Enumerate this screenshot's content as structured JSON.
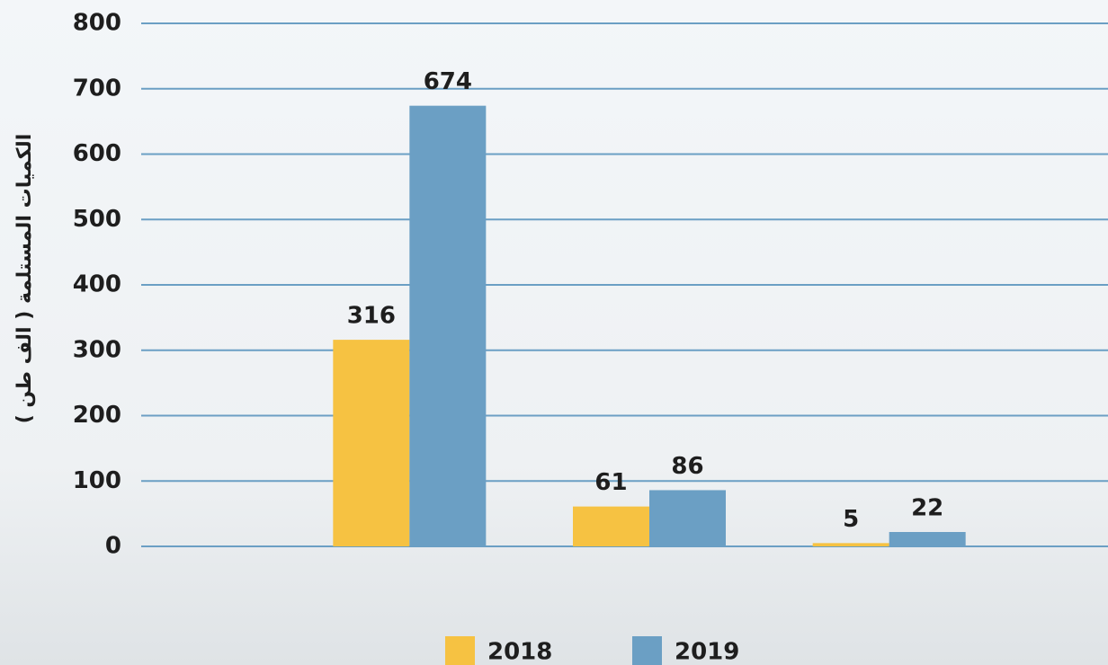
{
  "chart_data": {
    "type": "bar",
    "y_label": "الكميات المستلمة ( الف طن )",
    "categories": [
      null,
      null,
      null
    ],
    "series": [
      {
        "name": "2018",
        "color": "#f6c242",
        "values": [
          316,
          61,
          5
        ]
      },
      {
        "name": "2019",
        "color": "#6b9fc4",
        "values": [
          674,
          86,
          22
        ]
      }
    ],
    "ylim": [
      0,
      800
    ],
    "yticks": [
      0,
      100,
      200,
      300,
      400,
      500,
      600,
      700,
      800
    ],
    "grid": true,
    "legend": "bottom"
  }
}
